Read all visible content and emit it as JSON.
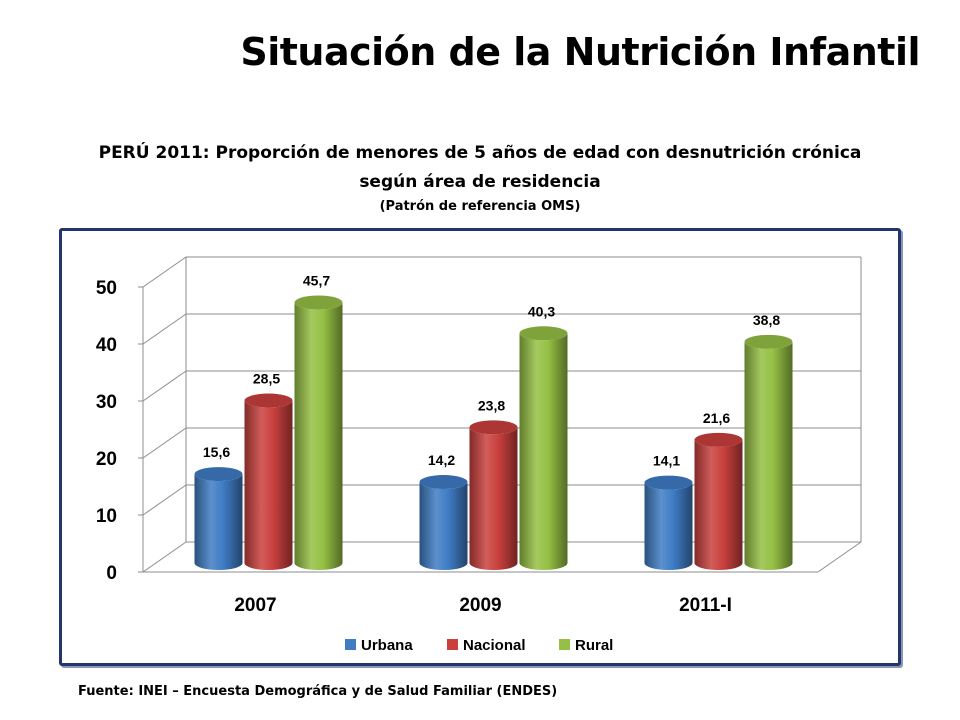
{
  "page": {
    "title": "Situación de la Nutrición Infantil",
    "subtitle_line1": "PERÚ 2011: Proporción de menores de 5 años de edad con desnutrición crónica",
    "subtitle_line2": "según área de residencia",
    "subtitle_note": "(Patrón de referencia OMS)",
    "source": "Fuente: INEI – Encuesta Demográfica y de Salud Familiar (ENDES)"
  },
  "chart_data": {
    "type": "bar",
    "categories": [
      "2007",
      "2009",
      "2011-I"
    ],
    "series": [
      {
        "name": "Urbana",
        "values": [
          15.6,
          14.2,
          14.1
        ],
        "labels": [
          "15,6",
          "14,2",
          "14,1"
        ],
        "color": "#3f7cc4"
      },
      {
        "name": "Nacional",
        "values": [
          28.5,
          23.8,
          21.6
        ],
        "labels": [
          "28,5",
          "23,8",
          "21,6"
        ],
        "color": "#c9403d"
      },
      {
        "name": "Rural",
        "values": [
          45.7,
          40.3,
          38.8
        ],
        "labels": [
          "45,7",
          "40,3",
          "38,8"
        ],
        "color": "#95c044"
      }
    ],
    "yticks": [
      "0",
      "10",
      "20",
      "30",
      "40",
      "50"
    ],
    "ylim": [
      0,
      50
    ],
    "grid": true,
    "legend": "bottom"
  }
}
